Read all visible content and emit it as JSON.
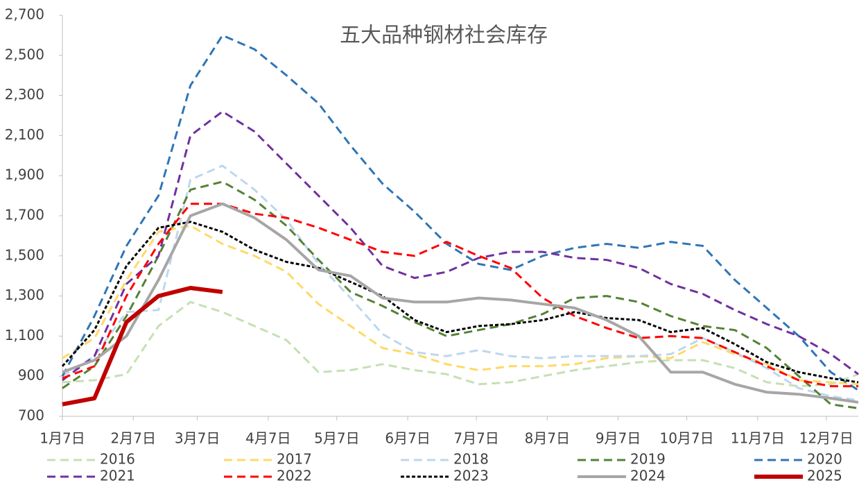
{
  "chart_data": {
    "type": "line",
    "title": "五大品种钢材社会库存",
    "x": [
      0,
      14,
      28,
      42,
      56,
      70,
      84,
      98,
      112,
      126,
      140,
      154,
      168,
      182,
      196,
      210,
      224,
      238,
      252,
      266,
      280,
      294,
      308,
      322,
      336,
      348
    ],
    "xlim": [
      0,
      348
    ],
    "xticks": [
      {
        "value": 0,
        "label": "1月7日"
      },
      {
        "value": 31,
        "label": "2月7日"
      },
      {
        "value": 59,
        "label": "3月7日"
      },
      {
        "value": 90,
        "label": "4月7日"
      },
      {
        "value": 120,
        "label": "5月7日"
      },
      {
        "value": 151,
        "label": "6月7日"
      },
      {
        "value": 181,
        "label": "7月7日"
      },
      {
        "value": 212,
        "label": "8月7日"
      },
      {
        "value": 243,
        "label": "9月7日"
      },
      {
        "value": 273,
        "label": "10月7日"
      },
      {
        "value": 304,
        "label": "11月7日"
      },
      {
        "value": 334,
        "label": "12月7日"
      }
    ],
    "ylim": [
      700,
      2700
    ],
    "yticks": [
      700,
      900,
      {
        "value": 1100,
        "label": "1,100"
      },
      {
        "value": 1300,
        "label": "1,300"
      },
      {
        "value": 1500,
        "label": "1,500"
      },
      {
        "value": 1700,
        "label": "1,700"
      },
      {
        "value": 1900,
        "label": "1,900"
      },
      {
        "value": 2100,
        "label": "2,100"
      },
      {
        "value": 2300,
        "label": "2,300"
      },
      {
        "value": 2500,
        "label": "2,500"
      },
      {
        "value": 2700,
        "label": "2,700"
      }
    ],
    "grid": false,
    "series": [
      {
        "name": "2016",
        "color": "#c5e0b4",
        "style": "dashed",
        "width": 3,
        "values": [
          870,
          880,
          910,
          1150,
          1270,
          1220,
          1150,
          1080,
          920,
          930,
          960,
          930,
          910,
          860,
          870,
          900,
          930,
          950,
          970,
          980,
          980,
          940,
          870,
          850,
          860,
          910
        ]
      },
      {
        "name": "2017",
        "color": "#ffd966",
        "style": "dashed",
        "width": 3,
        "values": [
          990,
          1090,
          1380,
          1620,
          1650,
          1560,
          1500,
          1420,
          1260,
          1150,
          1040,
          1010,
          960,
          930,
          950,
          950,
          960,
          990,
          1000,
          990,
          1070,
          1010,
          960,
          880,
          870,
          860
        ]
      },
      {
        "name": "2018",
        "color": "#bdd7ee",
        "style": "dashed",
        "width": 3,
        "values": [
          900,
          1000,
          1220,
          1230,
          1880,
          1950,
          1830,
          1680,
          1460,
          1290,
          1110,
          1020,
          1000,
          1030,
          1000,
          990,
          1000,
          1000,
          1000,
          1010,
          1090,
          1020,
          940,
          840,
          800,
          780
        ]
      },
      {
        "name": "2019",
        "color": "#548235",
        "style": "dashed",
        "width": 3,
        "values": [
          840,
          950,
          1200,
          1500,
          1830,
          1870,
          1780,
          1650,
          1480,
          1320,
          1250,
          1170,
          1100,
          1130,
          1160,
          1210,
          1290,
          1300,
          1270,
          1200,
          1150,
          1130,
          1040,
          900,
          760,
          740
        ]
      },
      {
        "name": "2020",
        "color": "#2e75b6",
        "style": "dashed",
        "width": 3,
        "values": [
          900,
          1200,
          1550,
          1800,
          2350,
          2600,
          2530,
          2400,
          2260,
          2050,
          1860,
          1720,
          1560,
          1460,
          1430,
          1500,
          1540,
          1560,
          1540,
          1570,
          1550,
          1380,
          1240,
          1100,
          920,
          830
        ]
      },
      {
        "name": "2021",
        "color": "#7030a0",
        "style": "dashed",
        "width": 3,
        "values": [
          880,
          1000,
          1360,
          1500,
          2100,
          2220,
          2120,
          1960,
          1800,
          1640,
          1450,
          1390,
          1420,
          1490,
          1520,
          1520,
          1490,
          1480,
          1440,
          1360,
          1310,
          1230,
          1160,
          1100,
          1010,
          910
        ]
      },
      {
        "name": "2022",
        "color": "#ff0000",
        "style": "dashed",
        "width": 3,
        "values": [
          890,
          950,
          1300,
          1560,
          1760,
          1760,
          1710,
          1690,
          1640,
          1580,
          1520,
          1500,
          1570,
          1500,
          1440,
          1290,
          1200,
          1140,
          1090,
          1100,
          1090,
          1020,
          950,
          880,
          850,
          850
        ]
      },
      {
        "name": "2023",
        "color": "#000000",
        "style": "dotted",
        "width": 3,
        "values": [
          950,
          1130,
          1450,
          1640,
          1670,
          1620,
          1530,
          1470,
          1440,
          1370,
          1300,
          1180,
          1120,
          1150,
          1160,
          1180,
          1220,
          1190,
          1180,
          1120,
          1140,
          1060,
          970,
          920,
          890,
          870
        ]
      },
      {
        "name": "2024",
        "color": "#a6a6a6",
        "style": "solid",
        "width": 4,
        "values": [
          920,
          980,
          1100,
          1380,
          1700,
          1760,
          1690,
          1580,
          1430,
          1400,
          1290,
          1270,
          1270,
          1290,
          1280,
          1260,
          1240,
          1180,
          1100,
          920,
          920,
          860,
          820,
          810,
          790,
          770
        ]
      },
      {
        "name": "2025",
        "color": "#c00000",
        "style": "solid",
        "width": 6,
        "values": [
          760,
          790,
          1170,
          1300,
          1340,
          1320,
          null,
          null,
          null,
          null,
          null,
          null,
          null,
          null,
          null,
          null,
          null,
          null,
          null,
          null,
          null,
          null,
          null,
          null,
          null,
          null
        ]
      }
    ]
  }
}
